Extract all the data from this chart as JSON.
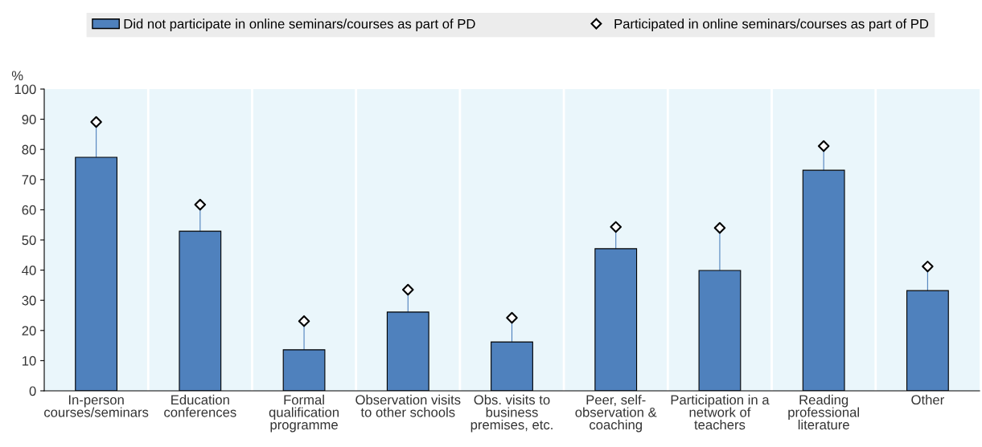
{
  "chart_data": {
    "type": "bar",
    "ylabel": "%",
    "categories": [
      "In-person\ncourses/seminars",
      "Education\nconferences",
      "Formal\nqualification\nprogramme",
      "Observation visits\nto other schools",
      "Obs. visits to\nbusiness\npremises, etc.",
      "Peer, self-\nobservation &\ncoaching",
      "Participation in a\nnetwork of\nteachers",
      "Reading\nprofessional\nliterature",
      "Other"
    ],
    "series": [
      {
        "name": "Did not participate in online seminars/courses as part of PD",
        "color": "#4f81bd",
        "values": [
          77.4,
          52.9,
          13.6,
          26.1,
          16.2,
          47.1,
          39.9,
          73.1,
          33.2
        ]
      },
      {
        "name": "Participated in online seminars/courses as part of PD",
        "type": "scatter",
        "color": "#000000",
        "marker": "diamond",
        "x": [
          "In-person\ncourses/seminars",
          "Education\nconferences",
          "Formal\nqualification\nprogramme",
          "Observation visits\nto other schools",
          "Obs. visits to\nbusiness\npremises, etc.",
          "Peer, self-\nobservation &\ncoaching",
          "Participation in a\nnetwork of\nteachers",
          "Reading\nprofessional\nliterature",
          "Other"
        ],
        "values": [
          89.1,
          61.7,
          23.1,
          33.5,
          24.2,
          54.3,
          54.0,
          81.1,
          41.2
        ]
      }
    ],
    "ylim": [
      0,
      100
    ],
    "yticks": [
      0,
      10,
      20,
      30,
      40,
      50,
      60,
      70,
      80,
      90,
      100
    ],
    "grid": false,
    "legend": "top"
  }
}
